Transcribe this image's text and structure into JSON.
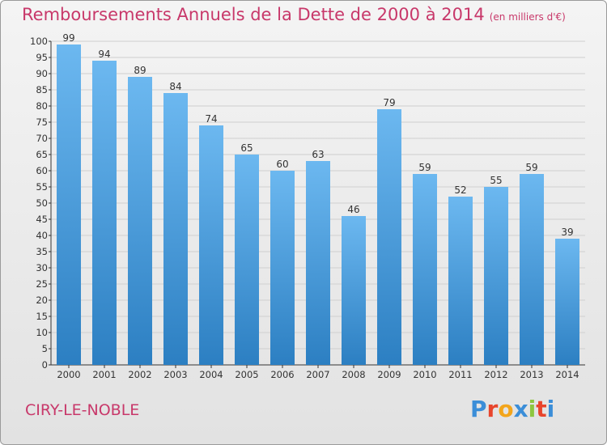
{
  "title": "Remboursements Annuels de la Dette de 2000 à 2014",
  "subtitle": "(en milliers d'€)",
  "footer": "CIRY-LE-NOBLE",
  "logo": {
    "letters": [
      "P",
      "r",
      "o",
      "x",
      "i",
      "t",
      "i"
    ],
    "colors": [
      "#3b8ed8",
      "#e8452c",
      "#f3a51b",
      "#3b8ed8",
      "#8dc63f",
      "#e8452c",
      "#3b8ed8"
    ]
  },
  "colors": {
    "bar_top": "#6cb8f0",
    "bar_bottom": "#2c7fc2",
    "grid": "#cfcfcf"
  },
  "chart_data": {
    "type": "bar",
    "title": "Remboursements Annuels de la Dette de 2000 à 2014",
    "xlabel": "",
    "ylabel": "",
    "ylim": [
      0,
      100
    ],
    "ytick_step": 5,
    "categories": [
      "2000",
      "2001",
      "2002",
      "2003",
      "2004",
      "2005",
      "2006",
      "2007",
      "2008",
      "2009",
      "2010",
      "2011",
      "2012",
      "2013",
      "2014"
    ],
    "values": [
      99,
      94,
      89,
      84,
      74,
      65,
      60,
      63,
      46,
      79,
      59,
      52,
      55,
      59,
      39
    ]
  }
}
